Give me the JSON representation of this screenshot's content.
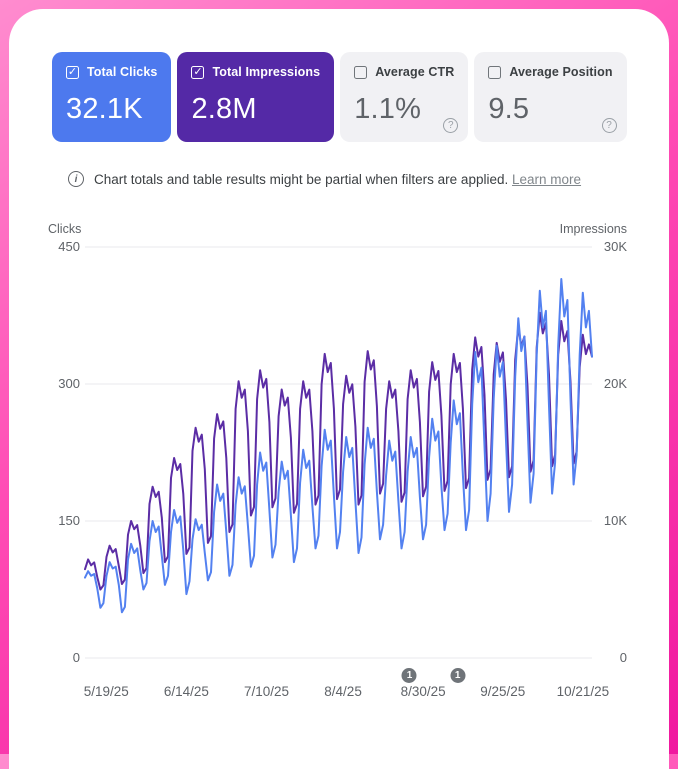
{
  "cards": [
    {
      "label": "Total Clicks",
      "value": "32.1K",
      "checked": true,
      "bg": "#4d79ee",
      "has_help": false
    },
    {
      "label": "Total Impressions",
      "value": "2.8M",
      "checked": true,
      "bg": "#5429a6",
      "has_help": false
    },
    {
      "label": "Average CTR",
      "value": "1.1%",
      "checked": false,
      "bg": "",
      "has_help": true
    },
    {
      "label": "Average Position",
      "value": "9.5",
      "checked": false,
      "bg": "",
      "has_help": true
    }
  ],
  "notice": {
    "text": "Chart totals and table results might be partial when filters are applied.",
    "link": "Learn more"
  },
  "chart_data": {
    "type": "line",
    "grid": true,
    "left_axis": {
      "title": "Clicks",
      "max": 450,
      "ticks": [
        "450",
        "300",
        "150",
        "0"
      ]
    },
    "right_axis": {
      "title": "Impressions",
      "max": 30000,
      "ticks": [
        "30K",
        "20K",
        "10K",
        "0"
      ]
    },
    "x_ticks": [
      {
        "label": "5/19/25",
        "f": 0.042
      },
      {
        "label": "6/14/25",
        "f": 0.2
      },
      {
        "label": "7/10/25",
        "f": 0.358
      },
      {
        "label": "8/4/25",
        "f": 0.509
      },
      {
        "label": "8/30/25",
        "f": 0.667
      },
      {
        "label": "9/25/25",
        "f": 0.824
      },
      {
        "label": "10/21/25",
        "f": 0.982
      }
    ],
    "annotations": [
      {
        "label": "1",
        "f": 0.64
      },
      {
        "label": "1",
        "f": 0.735
      }
    ],
    "series": [
      {
        "name": "Total Impressions",
        "axis": "right",
        "color": "#5b2da5",
        "values": [
          6480,
          7200,
          6770,
          6980,
          5900,
          5000,
          5300,
          7380,
          8200,
          7710,
          7950,
          6720,
          5400,
          5720,
          9000,
          10000,
          9400,
          9700,
          8200,
          6200,
          6570,
          11250,
          12500,
          11750,
          12130,
          10250,
          7000,
          7420,
          13140,
          14600,
          13720,
          14160,
          11970,
          7600,
          8060,
          15120,
          16800,
          15790,
          16300,
          13780,
          8400,
          8900,
          16020,
          17800,
          16730,
          17270,
          14600,
          9200,
          9750,
          18180,
          20200,
          18990,
          19590,
          16560,
          10400,
          11020,
          18900,
          21000,
          19740,
          20370,
          17220,
          11000,
          11660,
          17640,
          19600,
          18420,
          19010,
          16070,
          10600,
          11240,
          18180,
          20200,
          18990,
          19590,
          16560,
          11200,
          11870,
          19980,
          22200,
          20870,
          21530,
          18200,
          11600,
          12300,
          18540,
          20600,
          19360,
          19980,
          16890,
          11200,
          11870,
          20160,
          22400,
          21060,
          21730,
          18370,
          12000,
          12720,
          18180,
          20200,
          18990,
          19590,
          16560,
          11400,
          12080,
          18900,
          21000,
          19740,
          20370,
          17220,
          11800,
          12510,
          19440,
          21600,
          20300,
          20950,
          17710,
          12200,
          12930,
          19980,
          22200,
          20870,
          21530,
          18200,
          12400,
          13140,
          21060,
          23400,
          22000,
          22700,
          19190,
          13000,
          13780,
          20700,
          23000,
          21620,
          22310,
          18860,
          13200,
          13990,
          21780,
          24200,
          22750,
          23470,
          19840,
          13600,
          14420,
          22680,
          25200,
          23690,
          24440,
          20660,
          14000,
          14840,
          22140,
          24600,
          23120,
          23860,
          20170,
          14200,
          15050,
          21240,
          23600,
          22180,
          22890,
          22000
        ]
      },
      {
        "name": "Total Clicks",
        "axis": "left",
        "color": "#5381f0",
        "values": [
          88,
          95,
          90,
          92,
          76,
          55,
          60,
          90,
          105,
          98,
          100,
          80,
          50,
          56,
          108,
          125,
          115,
          120,
          96,
          75,
          82,
          128,
          150,
          138,
          144,
          112,
          80,
          90,
          138,
          162,
          148,
          155,
          118,
          70,
          84,
          130,
          152,
          140,
          146,
          115,
          85,
          94,
          160,
          190,
          172,
          180,
          138,
          90,
          102,
          168,
          198,
          180,
          188,
          145,
          100,
          112,
          190,
          225,
          205,
          214,
          162,
          110,
          124,
          182,
          215,
          196,
          205,
          156,
          105,
          120,
          192,
          228,
          208,
          216,
          166,
          120,
          134,
          210,
          250,
          228,
          238,
          178,
          120,
          138,
          204,
          242,
          220,
          230,
          172,
          115,
          132,
          212,
          252,
          230,
          240,
          182,
          130,
          146,
          200,
          238,
          216,
          226,
          172,
          120,
          138,
          204,
          242,
          220,
          230,
          176,
          130,
          146,
          220,
          262,
          238,
          248,
          188,
          140,
          158,
          236,
          282,
          256,
          268,
          200,
          140,
          162,
          278,
          335,
          302,
          318,
          232,
          150,
          180,
          284,
          342,
          308,
          324,
          238,
          160,
          190,
          308,
          372,
          336,
          352,
          258,
          170,
          202,
          332,
          402,
          362,
          380,
          276,
          180,
          214,
          342,
          415,
          374,
          392,
          284,
          190,
          222,
          332,
          400,
          362,
          380,
          330
        ]
      }
    ],
    "grid_color": "#e8eaed"
  }
}
